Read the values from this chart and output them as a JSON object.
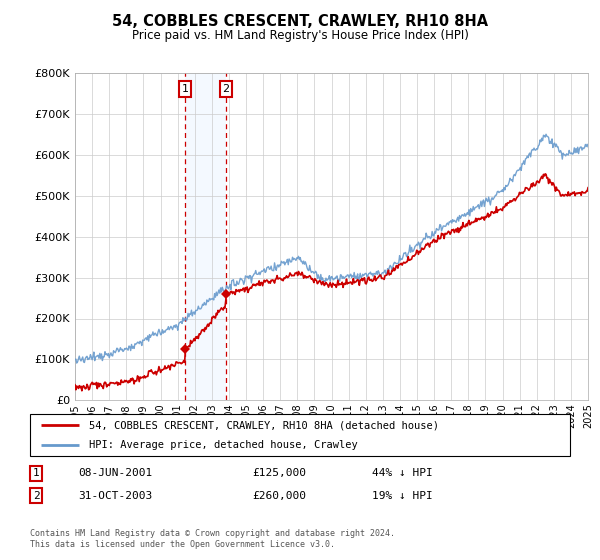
{
  "title": "54, COBBLES CRESCENT, CRAWLEY, RH10 8HA",
  "subtitle": "Price paid vs. HM Land Registry's House Price Index (HPI)",
  "legend_line1": "54, COBBLES CRESCENT, CRAWLEY, RH10 8HA (detached house)",
  "legend_line2": "HPI: Average price, detached house, Crawley",
  "transaction1_date": "08-JUN-2001",
  "transaction1_price": "£125,000",
  "transaction1_pct": "44% ↓ HPI",
  "transaction2_date": "31-OCT-2003",
  "transaction2_price": "£260,000",
  "transaction2_pct": "19% ↓ HPI",
  "footer": "Contains HM Land Registry data © Crown copyright and database right 2024.\nThis data is licensed under the Open Government Licence v3.0.",
  "hpi_color": "#6699cc",
  "price_color": "#cc0000",
  "shading_color": "#ddeeff",
  "ylim": [
    0,
    800000
  ],
  "yticks": [
    0,
    100000,
    200000,
    300000,
    400000,
    500000,
    600000,
    700000,
    800000
  ],
  "ytick_labels": [
    "£0",
    "£100K",
    "£200K",
    "£300K",
    "£400K",
    "£500K",
    "£600K",
    "£700K",
    "£800K"
  ],
  "x_start_year": 1995,
  "x_end_year": 2025,
  "transaction1_year": 2001.44,
  "transaction2_year": 2003.83,
  "transaction1_value": 125000,
  "transaction2_value": 260000
}
